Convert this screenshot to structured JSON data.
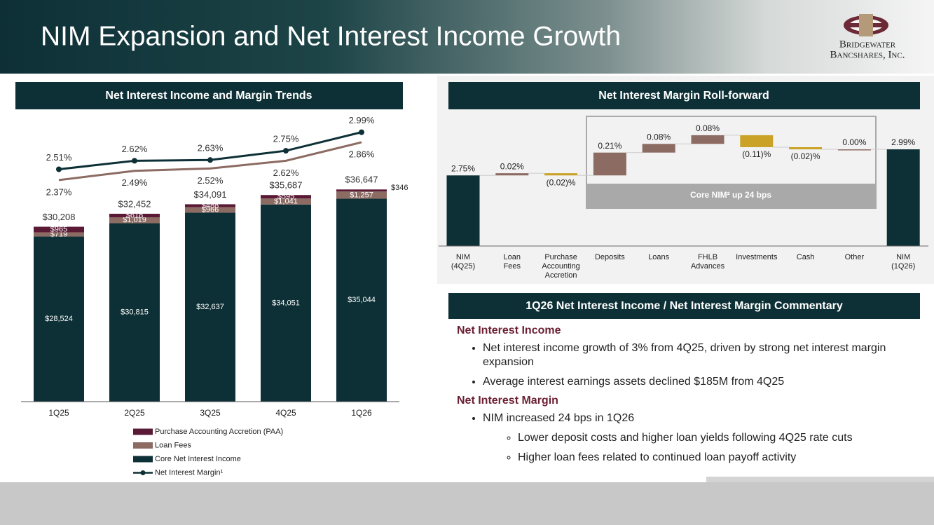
{
  "header": {
    "title": "NIM Expansion and Net Interest Income Growth",
    "logo": [
      "Bridgewater",
      "Bancshares, Inc."
    ]
  },
  "chart_data": [
    {
      "type": "stacked_bar_line",
      "title": "Net Interest Income and Margin Trends",
      "categories": [
        "1Q25",
        "2Q25",
        "3Q25",
        "4Q25",
        "1Q26"
      ],
      "series": [
        {
          "name": "Core Net Interest Income",
          "color": "#0d3036",
          "values": [
            28524,
            30815,
            32637,
            34051,
            35044
          ],
          "value_labels": [
            "$28,524",
            "$30,815",
            "$32,637",
            "$34,051",
            "$35,044"
          ]
        },
        {
          "name": "Loan Fees",
          "color": "#8c6b63",
          "values": [
            719,
            1019,
            966,
            1041,
            1257
          ],
          "value_labels": [
            "$719",
            "$1,019",
            "$966",
            "$1,041",
            "$1,257"
          ]
        },
        {
          "name": "Purchase Accounting Accretion (PAA)",
          "color": "#5a1a35",
          "values": [
            965,
            618,
            488,
            595,
            346
          ],
          "value_labels": [
            "$965",
            "$618",
            "$488",
            "$595",
            "$346"
          ]
        },
        {
          "name": "Net Interest Margin¹",
          "type": "line",
          "axis": "y2",
          "markers": true,
          "label_position": "above",
          "color": "#0d3036",
          "values": [
            2.51,
            2.62,
            2.63,
            2.75,
            2.99
          ],
          "value_labels": [
            "2.51%",
            "2.62%",
            "2.63%",
            "2.75%",
            "2.99%"
          ]
        },
        {
          "type": "line",
          "axis": "y2",
          "markers": false,
          "label_position": "below",
          "color": "#8c6b63",
          "values": [
            2.37,
            2.49,
            2.52,
            2.62,
            2.86
          ],
          "value_labels": [
            "2.37%",
            "2.49%",
            "2.52%",
            "2.62%",
            "2.86%"
          ]
        }
      ],
      "totals": {
        "values": [
          30208,
          32452,
          34091,
          35687,
          36647
        ],
        "value_labels": [
          "$30,208",
          "$32,452",
          "$34,091",
          "$35,687",
          "$36,647"
        ]
      },
      "ylim": [
        0,
        50000
      ],
      "y2lim": [
        -0.5,
        3.25
      ],
      "legend": "bottom"
    },
    {
      "type": "waterfall",
      "title": "Net Interest Margin Roll-forward",
      "categories": [
        "NIM\n(4Q25)",
        "Loan\nFees",
        "Purchase\nAccounting\nAccretion",
        "Deposits",
        "Loans",
        "FHLB\nAdvances",
        "Investments",
        "Cash",
        "Other",
        "NIM\n(1Q26)"
      ],
      "values": [
        2.75,
        0.02,
        -0.02,
        0.21,
        0.08,
        0.08,
        -0.11,
        -0.02,
        0.0,
        2.99
      ],
      "value_labels": [
        "2.75%",
        "0.02%",
        "(0.02)%",
        "0.21%",
        "0.08%",
        "0.08%",
        "(0.11)%",
        "(0.02)%",
        "0.00%",
        "2.99%"
      ],
      "measure": [
        "total",
        "relative",
        "relative",
        "relative",
        "relative",
        "relative",
        "relative",
        "relative",
        "relative",
        "total"
      ],
      "colors": {
        "total": "#0d3036",
        "increase": "#8c6b63",
        "decrease": "#c9a227"
      },
      "ylim": [
        2.1,
        3.3
      ],
      "annotation": "Core NIM² up 24 bps"
    }
  ],
  "commentary": {
    "title": "1Q26 Net Interest Income / Net Interest Margin Commentary",
    "sections": [
      {
        "heading": "Net Interest Income",
        "bullets": [
          {
            "text": "Net interest income growth of 3% from 4Q25, driven by strong net interest margin expansion"
          },
          {
            "text": "Average interest earnings assets declined $185M from 4Q25"
          }
        ]
      },
      {
        "heading": "Net Interest Margin",
        "bullets": [
          {
            "text": "NIM increased 24 bps in 1Q26",
            "sub": [
              "Lower deposit costs and higher loan yields following 4Q25 rate cuts",
              "Higher loan fees related to continued loan payoff activity"
            ]
          }
        ]
      }
    ]
  }
}
